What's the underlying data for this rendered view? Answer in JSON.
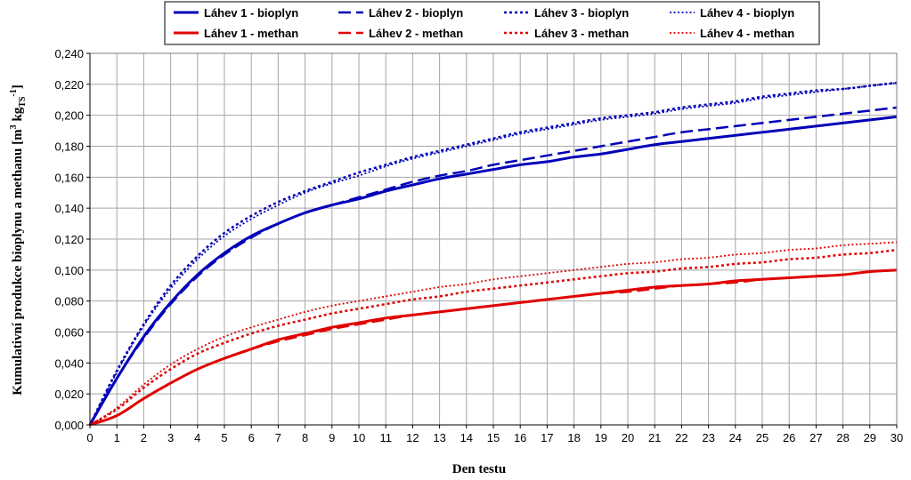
{
  "chart_data": {
    "type": "line",
    "xlabel": "Den testu",
    "ylabel": {
      "main": "Kumulativní produkce bioplynu a methanu",
      "unit_open": "[m",
      "unit_sup3": "3",
      "unit_kg": " kg",
      "unit_sub": "TS",
      "unit_sup_neg1": "-1",
      "unit_close": "]"
    },
    "xlim": [
      0,
      30
    ],
    "ylim": [
      0,
      0.24
    ],
    "x_ticks": [
      "0",
      "1",
      "2",
      "3",
      "4",
      "5",
      "6",
      "7",
      "8",
      "9",
      "10",
      "11",
      "12",
      "13",
      "14",
      "15",
      "16",
      "17",
      "18",
      "19",
      "20",
      "21",
      "22",
      "23",
      "24",
      "25",
      "26",
      "27",
      "28",
      "29",
      "30"
    ],
    "y_ticks": [
      "0,000",
      "0,020",
      "0,040",
      "0,060",
      "0,080",
      "0,100",
      "0,120",
      "0,140",
      "0,160",
      "0,180",
      "0,200",
      "0,220",
      "0,240"
    ],
    "grid": true,
    "legend_position": "top",
    "x": [
      0,
      1,
      2,
      3,
      4,
      5,
      6,
      7,
      8,
      9,
      10,
      11,
      12,
      13,
      14,
      15,
      16,
      17,
      18,
      19,
      20,
      21,
      22,
      23,
      24,
      25,
      26,
      27,
      28,
      29,
      30
    ],
    "series": [
      {
        "name": "Láhev 1 - bioplyn",
        "color": "#0000b8",
        "style": "solid",
        "values": [
          0,
          0.03,
          0.057,
          0.079,
          0.097,
          0.111,
          0.122,
          0.13,
          0.137,
          0.142,
          0.146,
          0.151,
          0.155,
          0.159,
          0.162,
          0.165,
          0.168,
          0.17,
          0.173,
          0.175,
          0.178,
          0.181,
          0.183,
          0.185,
          0.187,
          0.189,
          0.191,
          0.193,
          0.195,
          0.197,
          0.199
        ]
      },
      {
        "name": "Láhev 2 - bioplyn",
        "color": "#0000b8",
        "style": "dashed",
        "values": [
          0,
          0.03,
          0.056,
          0.078,
          0.096,
          0.11,
          0.121,
          0.13,
          0.137,
          0.142,
          0.147,
          0.152,
          0.157,
          0.161,
          0.164,
          0.168,
          0.171,
          0.174,
          0.177,
          0.18,
          0.183,
          0.186,
          0.189,
          0.191,
          0.193,
          0.195,
          0.197,
          0.199,
          0.201,
          0.203,
          0.205
        ]
      },
      {
        "name": "Láhev 3 - bioplyn",
        "color": "#0000b8",
        "style": "dotted",
        "values": [
          0,
          0.035,
          0.065,
          0.09,
          0.109,
          0.124,
          0.135,
          0.144,
          0.151,
          0.157,
          0.163,
          0.168,
          0.173,
          0.177,
          0.181,
          0.185,
          0.189,
          0.192,
          0.195,
          0.198,
          0.2,
          0.202,
          0.205,
          0.207,
          0.209,
          0.212,
          0.214,
          0.216,
          0.217,
          0.219,
          0.221
        ]
      },
      {
        "name": "Láhev 4 - bioplyn",
        "color": "#0000b8",
        "style": "dotted-fine",
        "values": [
          0,
          0.034,
          0.064,
          0.088,
          0.107,
          0.122,
          0.133,
          0.142,
          0.15,
          0.156,
          0.161,
          0.167,
          0.172,
          0.176,
          0.18,
          0.184,
          0.188,
          0.191,
          0.194,
          0.197,
          0.199,
          0.201,
          0.204,
          0.206,
          0.208,
          0.211,
          0.213,
          0.215,
          0.217,
          0.219,
          0.221
        ]
      },
      {
        "name": "Láhev 1 - methan",
        "color": "#e00000",
        "style": "solid",
        "values": [
          0,
          0.006,
          0.017,
          0.027,
          0.036,
          0.043,
          0.049,
          0.055,
          0.059,
          0.063,
          0.066,
          0.069,
          0.071,
          0.073,
          0.075,
          0.077,
          0.079,
          0.081,
          0.083,
          0.085,
          0.087,
          0.089,
          0.09,
          0.091,
          0.093,
          0.094,
          0.095,
          0.096,
          0.097,
          0.099,
          0.1
        ]
      },
      {
        "name": "Láhev 2 - methan",
        "color": "#e00000",
        "style": "dashed",
        "values": [
          0,
          0.006,
          0.017,
          0.027,
          0.036,
          0.043,
          0.049,
          0.054,
          0.058,
          0.062,
          0.065,
          0.068,
          0.071,
          0.073,
          0.075,
          0.077,
          0.079,
          0.081,
          0.083,
          0.085,
          0.086,
          0.088,
          0.09,
          0.091,
          0.092,
          0.094,
          0.095,
          0.096,
          0.097,
          0.099,
          0.1
        ]
      },
      {
        "name": "Láhev 3 - methan",
        "color": "#e00000",
        "style": "dotted",
        "values": [
          0,
          0.01,
          0.024,
          0.036,
          0.046,
          0.053,
          0.059,
          0.064,
          0.068,
          0.072,
          0.075,
          0.078,
          0.081,
          0.083,
          0.086,
          0.088,
          0.09,
          0.092,
          0.094,
          0.096,
          0.098,
          0.099,
          0.101,
          0.102,
          0.104,
          0.105,
          0.107,
          0.108,
          0.11,
          0.111,
          0.113
        ]
      },
      {
        "name": "Láhev 4 - methan",
        "color": "#e00000",
        "style": "dotted-fine",
        "values": [
          0,
          0.011,
          0.026,
          0.039,
          0.049,
          0.057,
          0.063,
          0.068,
          0.073,
          0.077,
          0.08,
          0.083,
          0.086,
          0.089,
          0.091,
          0.094,
          0.096,
          0.098,
          0.1,
          0.102,
          0.104,
          0.105,
          0.107,
          0.108,
          0.11,
          0.111,
          0.113,
          0.114,
          0.116,
          0.117,
          0.118
        ]
      }
    ]
  }
}
